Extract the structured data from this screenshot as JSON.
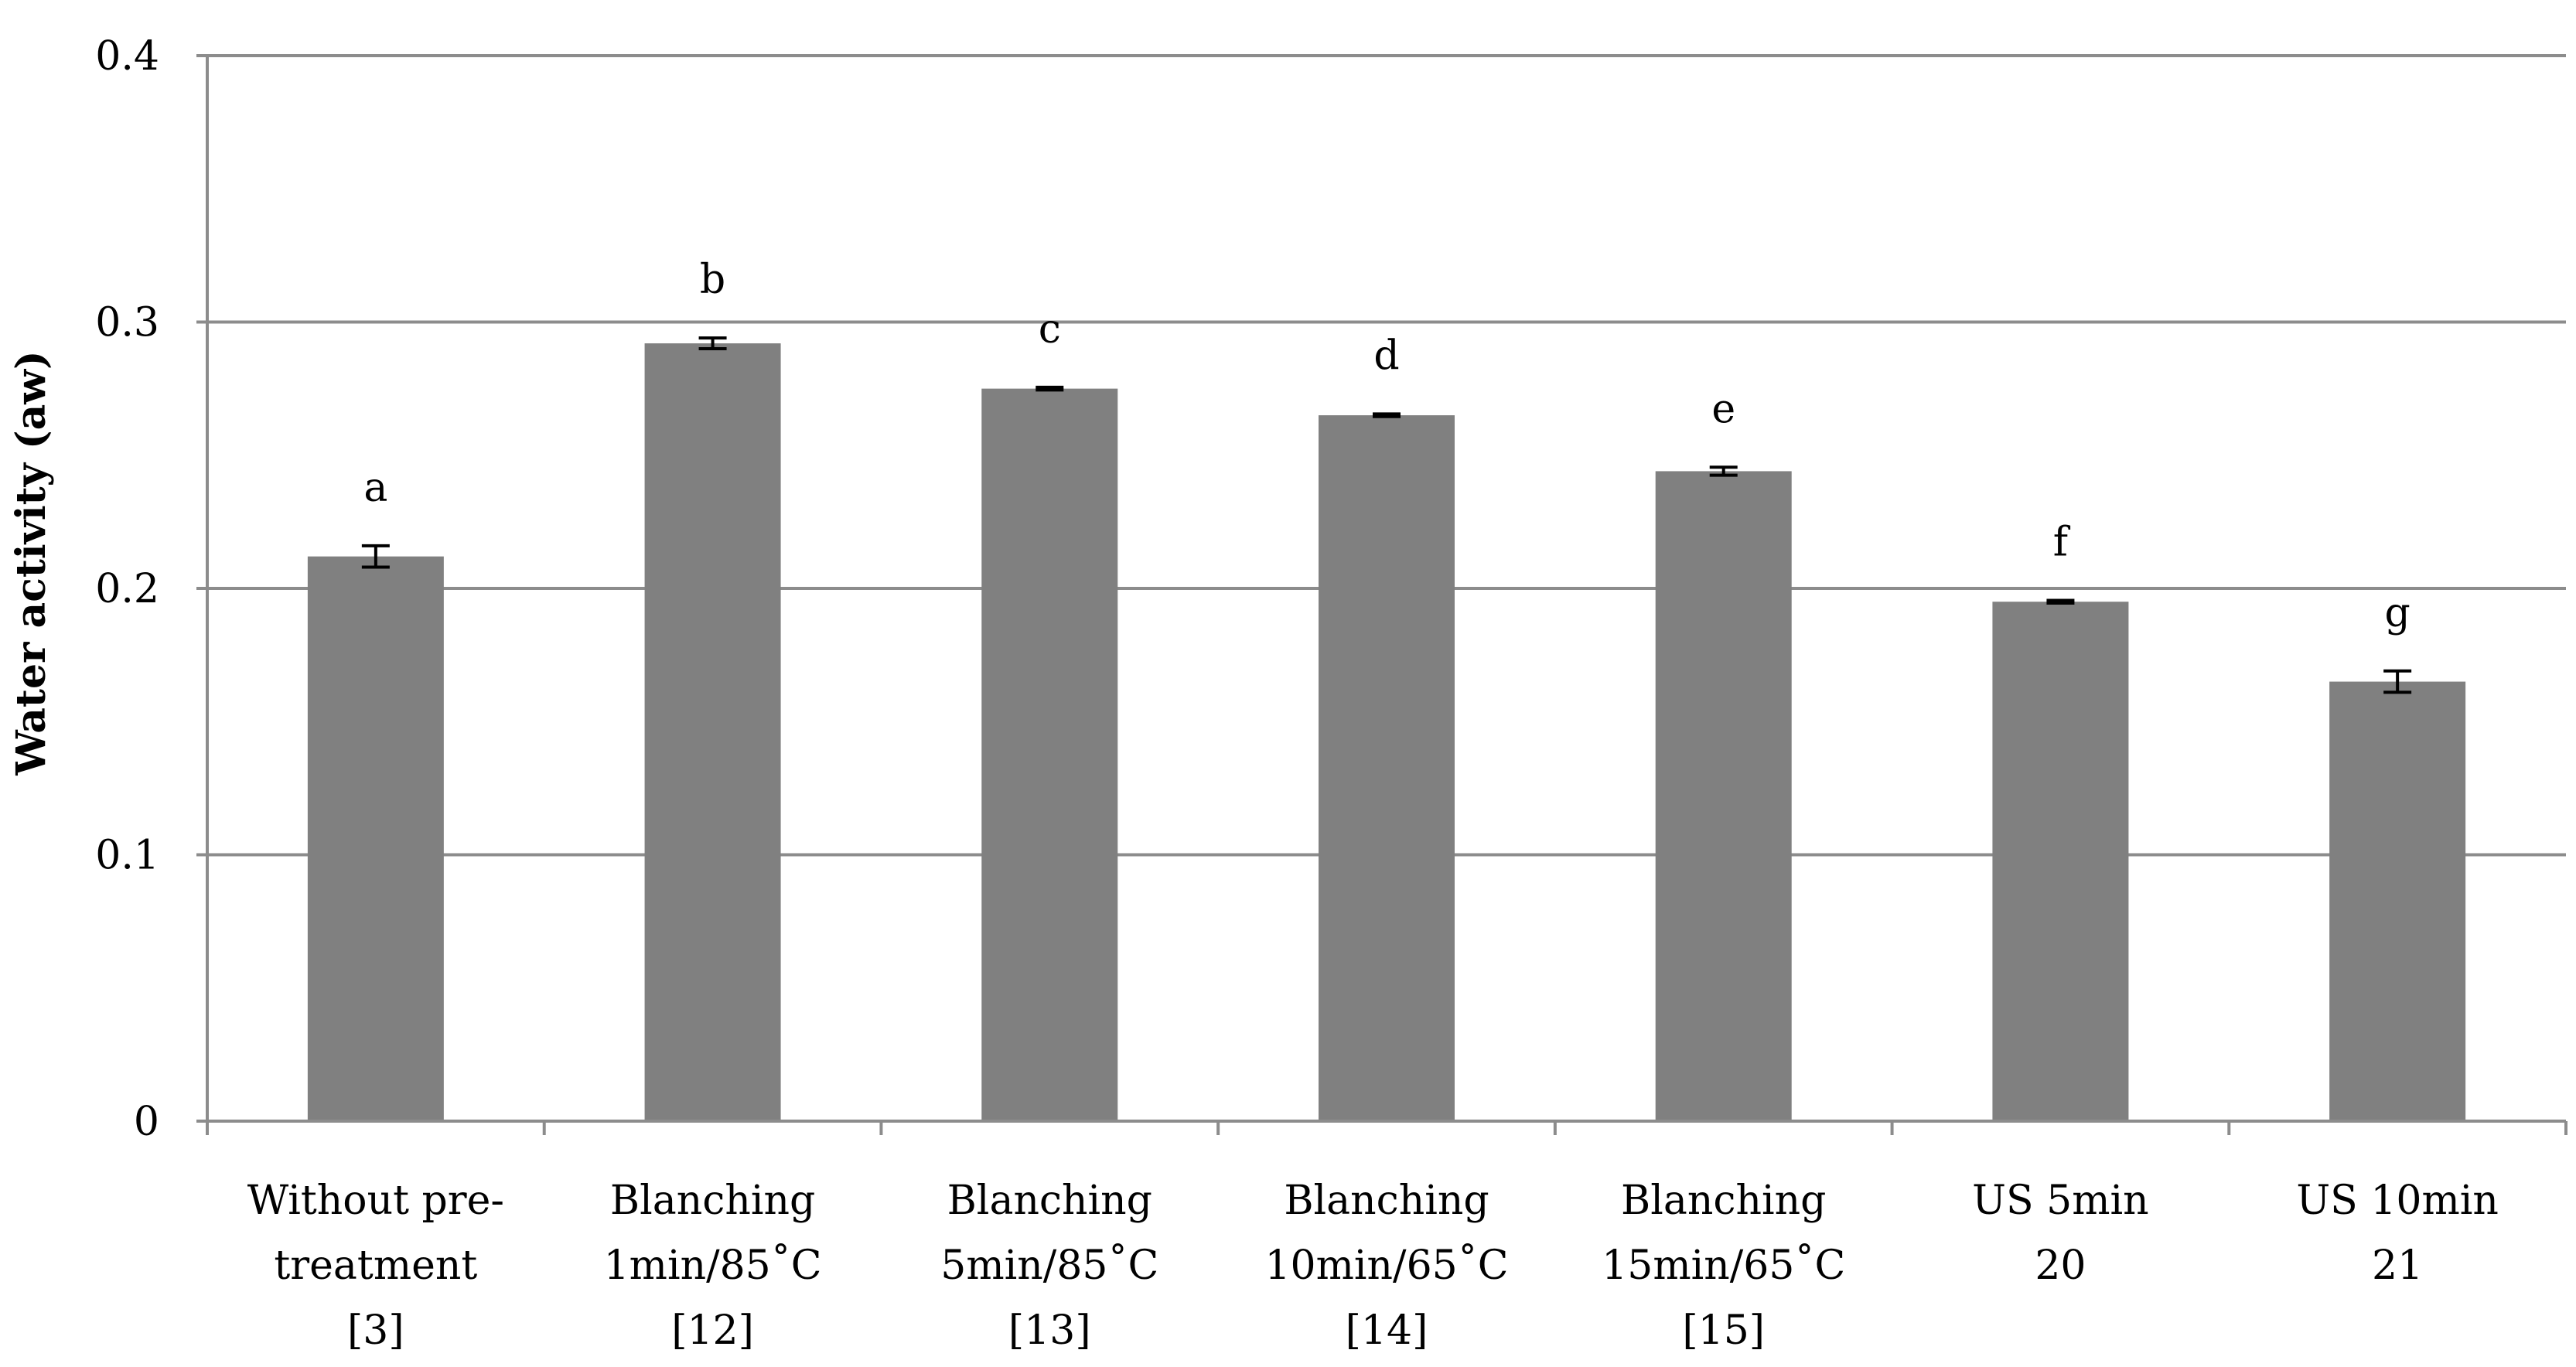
{
  "chart_data": {
    "type": "bar",
    "title": "",
    "xlabel": "",
    "ylabel": "Water activity (aw)",
    "ylim": [
      0,
      0.4
    ],
    "yticks": [
      0,
      0.1,
      0.2,
      0.3,
      0.4
    ],
    "ytick_labels": [
      "0",
      "0.1",
      "0.2",
      "0.3",
      "0.4"
    ],
    "grid": true,
    "bar_color": "#808080",
    "grid_color": "#8c8c8c",
    "categories": [
      [
        "Without pre-",
        "treatment",
        "[3]"
      ],
      [
        "Blanching",
        "1min/85˚C",
        "[12]"
      ],
      [
        "Blanching",
        "5min/85˚C",
        "[13]"
      ],
      [
        "Blanching",
        "10min/65˚C",
        "[14]"
      ],
      [
        "Blanching",
        "15min/65˚C",
        "[15]"
      ],
      [
        "US 5min",
        "20"
      ],
      [
        "US 10min",
        "21"
      ]
    ],
    "values": [
      0.212,
      0.292,
      0.275,
      0.265,
      0.244,
      0.195,
      0.165
    ],
    "errors": [
      0.004,
      0.002,
      0.0005,
      0.0005,
      0.0015,
      0.0005,
      0.004
    ],
    "significance_letters": [
      "a",
      "b",
      "c",
      "d",
      "e",
      "f",
      "g"
    ]
  }
}
